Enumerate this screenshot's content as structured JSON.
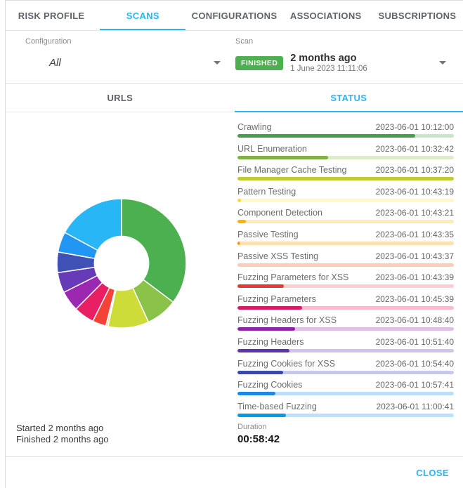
{
  "tabs": {
    "items": [
      "RISK PROFILE",
      "SCANS",
      "CONFIGURATIONS",
      "ASSOCIATIONS",
      "SUBSCRIPTIONS"
    ],
    "active_index": 1
  },
  "filters": {
    "configuration": {
      "label": "Configuration",
      "value": "All"
    },
    "scan": {
      "label": "Scan",
      "status": "FINISHED",
      "status_color": "#4caf50",
      "title": "2 months ago",
      "subtitle": "1 June 2023 11:11:06"
    }
  },
  "subtabs": {
    "items": [
      "URLS",
      "STATUS"
    ],
    "active_index": 1
  },
  "phases": [
    {
      "name": "Crawling",
      "timestamp": "2023-06-01 10:12:00",
      "progress": 82,
      "fill": "#43a047",
      "track": "#c8e6c9"
    },
    {
      "name": "URL Enumeration",
      "timestamp": "2023-06-01 10:32:42",
      "progress": 42,
      "fill": "#7cb342",
      "track": "#dcedc8"
    },
    {
      "name": "File Manager Cache Testing",
      "timestamp": "2023-06-01 10:37:20",
      "progress": 100,
      "fill": "#c0ca33",
      "track": "#f0f4c3"
    },
    {
      "name": "Pattern Testing",
      "timestamp": "2023-06-01 10:43:19",
      "progress": 1.5,
      "fill": "#fdd835",
      "track": "#fff9c4"
    },
    {
      "name": "Component Detection",
      "timestamp": "2023-06-01 10:43:21",
      "progress": 4,
      "fill": "#ffb300",
      "track": "#ffecb3"
    },
    {
      "name": "Passive Testing",
      "timestamp": "2023-06-01 10:43:35",
      "progress": 1,
      "fill": "#fb8c00",
      "track": "#ffe0b2"
    },
    {
      "name": "Passive XSS Testing",
      "timestamp": "2023-06-01 10:43:37",
      "progress": 0,
      "fill": "#f4511e",
      "track": "#ffccbc"
    },
    {
      "name": "Fuzzing Parameters for XSS",
      "timestamp": "2023-06-01 10:43:39",
      "progress": 21.5,
      "fill": "#e53935",
      "track": "#ffcdd2"
    },
    {
      "name": "Fuzzing Parameters",
      "timestamp": "2023-06-01 10:45:39",
      "progress": 30,
      "fill": "#d81b60",
      "track": "#f8bbd0"
    },
    {
      "name": "Fuzzing Headers for XSS",
      "timestamp": "2023-06-01 10:48:40",
      "progress": 26.5,
      "fill": "#8e24aa",
      "track": "#e1bee7"
    },
    {
      "name": "Fuzzing Headers",
      "timestamp": "2023-06-01 10:51:40",
      "progress": 24,
      "fill": "#5e35b1",
      "track": "#d1c4e9"
    },
    {
      "name": "Fuzzing Cookies for XSS",
      "timestamp": "2023-06-01 10:54:40",
      "progress": 21,
      "fill": "#3949ab",
      "track": "#c5cae9"
    },
    {
      "name": "Fuzzing Cookies",
      "timestamp": "2023-06-01 10:57:41",
      "progress": 17.5,
      "fill": "#1e88e5",
      "track": "#bbdefb"
    },
    {
      "name": "Time-based Fuzzing",
      "timestamp": "2023-06-01 11:00:41",
      "progress": 22.5,
      "fill": "#039be5",
      "track": "#b3e5fc"
    }
  ],
  "chart_data": {
    "type": "pie",
    "title": "Scan phase durations",
    "labels": [
      "Crawling",
      "URL Enumeration",
      "File Manager Cache Testing",
      "Pattern Testing",
      "Component Detection",
      "Passive Testing",
      "Passive XSS Testing",
      "Fuzzing Parameters for XSS",
      "Fuzzing Parameters",
      "Fuzzing Headers for XSS",
      "Fuzzing Headers",
      "Fuzzing Cookies for XSS",
      "Fuzzing Cookies",
      "Time-based Fuzzing"
    ],
    "values": [
      1242,
      278,
      359,
      2,
      14,
      2,
      2,
      120,
      181,
      180,
      180,
      181,
      180,
      601
    ],
    "unit": "seconds",
    "colors": [
      "#4caf50",
      "#8bc34a",
      "#cddc39",
      "#ffeb3b",
      "#ffc107",
      "#ff9800",
      "#ff5722",
      "#f44336",
      "#e91e63",
      "#9c27b0",
      "#673ab7",
      "#3f51b5",
      "#2196f3",
      "#29b6f6"
    ],
    "donut_inner_ratio": 0.42,
    "start_angle_deg": 0,
    "direction": "clockwise",
    "legend": "none",
    "gap_stroke": "#ffffff"
  },
  "summary": {
    "started": "Started 2 months ago",
    "finished": "Finished 2 months ago",
    "duration_label": "Duration",
    "duration_value": "00:58:42"
  },
  "footer": {
    "close_label": "CLOSE"
  },
  "colors": {
    "accent": "#29b6f6",
    "divider": "#e4e4e4"
  }
}
